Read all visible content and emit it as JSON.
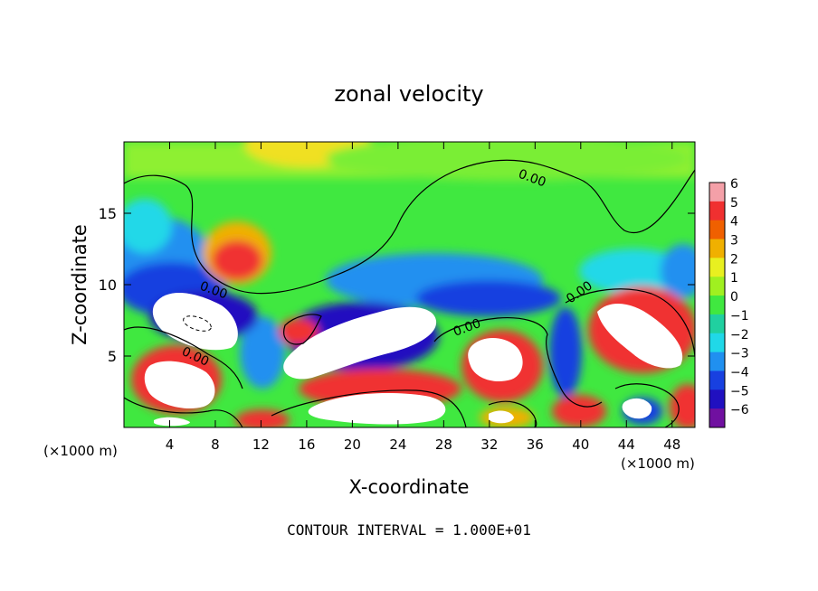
{
  "chart_data": {
    "type": "heatmap",
    "title": "zonal velocity",
    "xlabel": "X-coordinate",
    "ylabel": "Z-coordinate",
    "x_unit_left": "(×1000 m)",
    "x_unit_right": "(×1000 m)",
    "xlim": [
      0,
      50
    ],
    "ylim": [
      0,
      20
    ],
    "x_ticks": [
      4,
      8,
      12,
      16,
      20,
      24,
      28,
      32,
      36,
      40,
      44,
      48
    ],
    "y_ticks": [
      5,
      10,
      15
    ],
    "colorbar": {
      "ticks": [
        6,
        5,
        4,
        3,
        2,
        1,
        0,
        -1,
        -2,
        -3,
        -4,
        -5,
        -6
      ],
      "range": [
        -6,
        6
      ],
      "colors": [
        "#f4a0a8",
        "#f03030",
        "#f06000",
        "#f0b000",
        "#e8f020",
        "#a0f020",
        "#40e840",
        "#20d0a0",
        "#20d8e8",
        "#2090f0",
        "#1840e0",
        "#2010c0",
        "#7010a0"
      ]
    },
    "contour_labels": [
      "0.00",
      "0.00",
      "0.00",
      "0.00",
      "0.00"
    ],
    "footer": "CONTOUR INTERVAL = 1.000E+01"
  }
}
